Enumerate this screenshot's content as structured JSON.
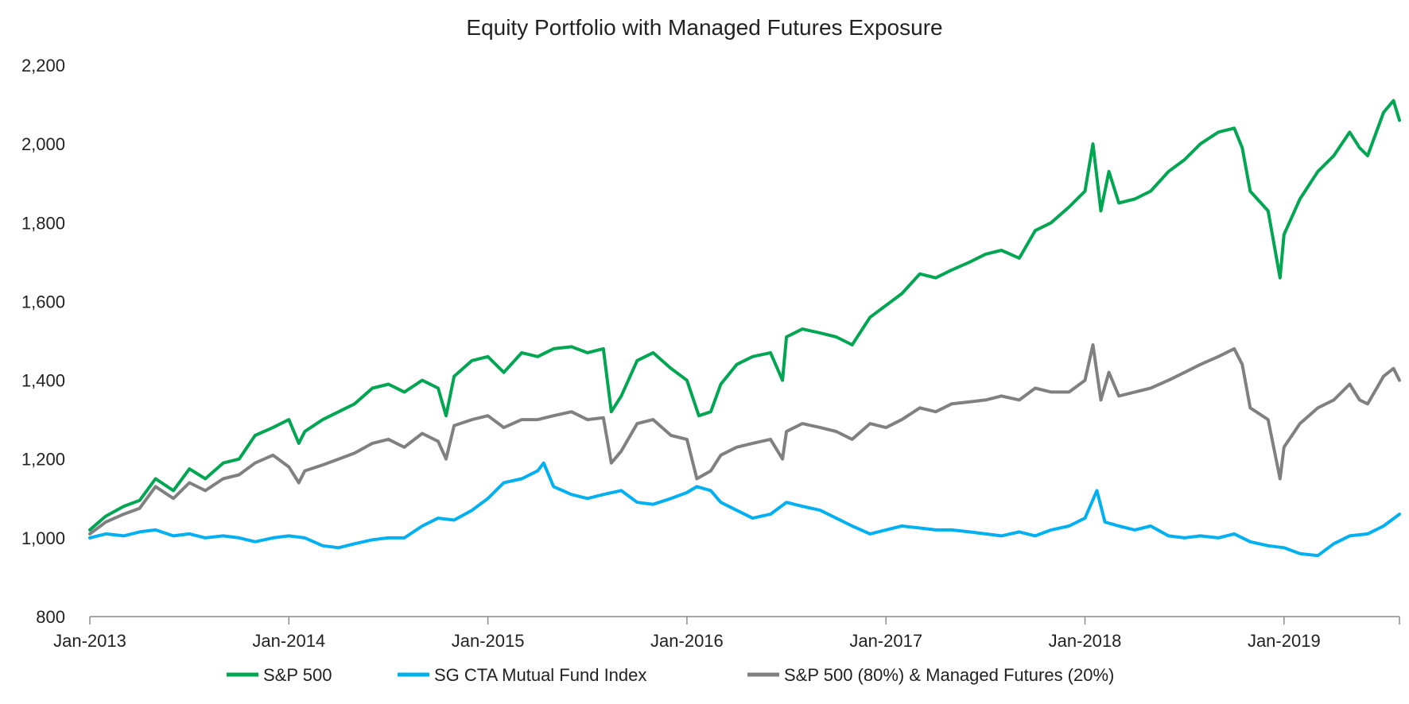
{
  "chart_data": {
    "type": "line",
    "title": "Equity Portfolio with Managed Futures Exposure",
    "xlabel": "",
    "ylabel": "",
    "ylim": [
      800,
      2200
    ],
    "yticks": [
      800,
      1000,
      1200,
      1400,
      1600,
      1800,
      2000,
      2200
    ],
    "ytick_labels": [
      "800",
      "1,000",
      "1,200",
      "1,400",
      "1,600",
      "1,800",
      "2,000",
      "2,200"
    ],
    "xlim": [
      2013.0,
      2019.58
    ],
    "xticks": [
      2013,
      2014,
      2015,
      2016,
      2017,
      2018,
      2019
    ],
    "xtick_labels": [
      "Jan-2013",
      "Jan-2014",
      "Jan-2015",
      "Jan-2016",
      "Jan-2017",
      "Jan-2018",
      "Jan-2019"
    ],
    "grid": false,
    "legend_position": "bottom",
    "series": [
      {
        "name": "S&P 500",
        "color": "#00a651",
        "x": [
          2013.0,
          2013.08,
          2013.17,
          2013.25,
          2013.33,
          2013.42,
          2013.5,
          2013.58,
          2013.67,
          2013.75,
          2013.83,
          2013.92,
          2014.0,
          2014.05,
          2014.08,
          2014.17,
          2014.25,
          2014.33,
          2014.42,
          2014.5,
          2014.58,
          2014.67,
          2014.75,
          2014.79,
          2014.83,
          2014.92,
          2015.0,
          2015.08,
          2015.17,
          2015.25,
          2015.33,
          2015.42,
          2015.5,
          2015.58,
          2015.62,
          2015.67,
          2015.75,
          2015.83,
          2015.92,
          2016.0,
          2016.06,
          2016.12,
          2016.17,
          2016.25,
          2016.33,
          2016.42,
          2016.48,
          2016.5,
          2016.58,
          2016.67,
          2016.75,
          2016.83,
          2016.92,
          2017.0,
          2017.08,
          2017.17,
          2017.25,
          2017.33,
          2017.42,
          2017.5,
          2017.58,
          2017.67,
          2017.75,
          2017.83,
          2017.92,
          2018.0,
          2018.04,
          2018.08,
          2018.12,
          2018.17,
          2018.25,
          2018.33,
          2018.42,
          2018.5,
          2018.58,
          2018.67,
          2018.75,
          2018.79,
          2018.83,
          2018.92,
          2018.98,
          2019.0,
          2019.08,
          2019.17,
          2019.25,
          2019.33,
          2019.38,
          2019.42,
          2019.5,
          2019.55,
          2019.58
        ],
        "values": [
          1020,
          1055,
          1080,
          1095,
          1150,
          1120,
          1175,
          1150,
          1190,
          1200,
          1260,
          1280,
          1300,
          1240,
          1270,
          1300,
          1320,
          1340,
          1380,
          1390,
          1370,
          1400,
          1380,
          1310,
          1410,
          1450,
          1460,
          1420,
          1470,
          1460,
          1480,
          1485,
          1470,
          1480,
          1320,
          1360,
          1450,
          1470,
          1430,
          1400,
          1310,
          1320,
          1390,
          1440,
          1460,
          1470,
          1400,
          1510,
          1530,
          1520,
          1510,
          1490,
          1560,
          1590,
          1620,
          1670,
          1660,
          1680,
          1700,
          1720,
          1730,
          1710,
          1780,
          1800,
          1840,
          1880,
          2000,
          1830,
          1930,
          1850,
          1860,
          1880,
          1930,
          1960,
          2000,
          2030,
          2040,
          1990,
          1880,
          1830,
          1660,
          1770,
          1860,
          1930,
          1970,
          2030,
          1990,
          1970,
          2080,
          2110,
          2060
        ]
      },
      {
        "name": "SG CTA Mutual Fund Index",
        "color": "#00b0f0",
        "x": [
          2013.0,
          2013.08,
          2013.17,
          2013.25,
          2013.33,
          2013.42,
          2013.5,
          2013.58,
          2013.67,
          2013.75,
          2013.83,
          2013.92,
          2014.0,
          2014.08,
          2014.17,
          2014.25,
          2014.33,
          2014.42,
          2014.5,
          2014.58,
          2014.67,
          2014.75,
          2014.83,
          2014.92,
          2015.0,
          2015.08,
          2015.17,
          2015.25,
          2015.28,
          2015.33,
          2015.42,
          2015.5,
          2015.58,
          2015.67,
          2015.75,
          2015.83,
          2015.92,
          2016.0,
          2016.05,
          2016.12,
          2016.17,
          2016.25,
          2016.33,
          2016.42,
          2016.5,
          2016.58,
          2016.67,
          2016.75,
          2016.83,
          2016.92,
          2017.0,
          2017.08,
          2017.17,
          2017.25,
          2017.33,
          2017.42,
          2017.5,
          2017.58,
          2017.67,
          2017.75,
          2017.83,
          2017.92,
          2018.0,
          2018.06,
          2018.1,
          2018.17,
          2018.25,
          2018.33,
          2018.42,
          2018.5,
          2018.58,
          2018.67,
          2018.75,
          2018.83,
          2018.92,
          2019.0,
          2019.08,
          2019.17,
          2019.25,
          2019.33,
          2019.42,
          2019.5,
          2019.58
        ],
        "values": [
          1000,
          1010,
          1005,
          1015,
          1020,
          1005,
          1010,
          1000,
          1005,
          1000,
          990,
          1000,
          1005,
          1000,
          980,
          975,
          985,
          995,
          1000,
          1000,
          1030,
          1050,
          1045,
          1070,
          1100,
          1140,
          1150,
          1170,
          1190,
          1130,
          1110,
          1100,
          1110,
          1120,
          1090,
          1085,
          1100,
          1115,
          1130,
          1120,
          1090,
          1070,
          1050,
          1060,
          1090,
          1080,
          1070,
          1050,
          1030,
          1010,
          1020,
          1030,
          1025,
          1020,
          1020,
          1015,
          1010,
          1005,
          1015,
          1005,
          1020,
          1030,
          1050,
          1120,
          1040,
          1030,
          1020,
          1030,
          1005,
          1000,
          1005,
          1000,
          1010,
          990,
          980,
          975,
          960,
          955,
          985,
          1005,
          1010,
          1030,
          1060
        ]
      },
      {
        "name": "S&P 500 (80%) & Managed Futures (20%)",
        "color": "#808080",
        "x": [
          2013.0,
          2013.08,
          2013.17,
          2013.25,
          2013.33,
          2013.42,
          2013.5,
          2013.58,
          2013.67,
          2013.75,
          2013.83,
          2013.92,
          2014.0,
          2014.05,
          2014.08,
          2014.17,
          2014.25,
          2014.33,
          2014.42,
          2014.5,
          2014.58,
          2014.67,
          2014.75,
          2014.79,
          2014.83,
          2014.92,
          2015.0,
          2015.08,
          2015.17,
          2015.25,
          2015.33,
          2015.42,
          2015.5,
          2015.58,
          2015.62,
          2015.67,
          2015.75,
          2015.83,
          2015.92,
          2016.0,
          2016.05,
          2016.12,
          2016.17,
          2016.25,
          2016.33,
          2016.42,
          2016.48,
          2016.5,
          2016.58,
          2016.67,
          2016.75,
          2016.83,
          2016.92,
          2017.0,
          2017.08,
          2017.17,
          2017.25,
          2017.33,
          2017.42,
          2017.5,
          2017.58,
          2017.67,
          2017.75,
          2017.83,
          2017.92,
          2018.0,
          2018.04,
          2018.08,
          2018.12,
          2018.17,
          2018.25,
          2018.33,
          2018.42,
          2018.5,
          2018.58,
          2018.67,
          2018.75,
          2018.79,
          2018.83,
          2018.92,
          2018.98,
          2019.0,
          2019.08,
          2019.17,
          2019.25,
          2019.33,
          2019.38,
          2019.42,
          2019.5,
          2019.55,
          2019.58
        ],
        "values": [
          1010,
          1040,
          1060,
          1075,
          1130,
          1100,
          1140,
          1120,
          1150,
          1160,
          1190,
          1210,
          1180,
          1140,
          1170,
          1185,
          1200,
          1215,
          1240,
          1250,
          1230,
          1265,
          1245,
          1200,
          1285,
          1300,
          1310,
          1280,
          1300,
          1300,
          1310,
          1320,
          1300,
          1305,
          1190,
          1220,
          1290,
          1300,
          1260,
          1250,
          1150,
          1170,
          1210,
          1230,
          1240,
          1250,
          1200,
          1270,
          1290,
          1280,
          1270,
          1250,
          1290,
          1280,
          1300,
          1330,
          1320,
          1340,
          1345,
          1350,
          1360,
          1350,
          1380,
          1370,
          1370,
          1400,
          1490,
          1350,
          1420,
          1360,
          1370,
          1380,
          1400,
          1420,
          1440,
          1460,
          1480,
          1440,
          1330,
          1300,
          1150,
          1230,
          1290,
          1330,
          1350,
          1390,
          1350,
          1340,
          1410,
          1430,
          1400
        ]
      }
    ]
  }
}
